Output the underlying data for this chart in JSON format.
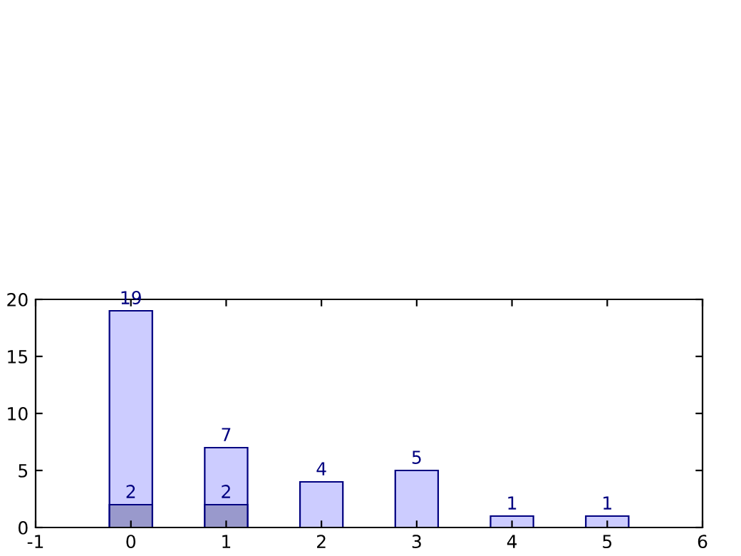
{
  "chart_data": {
    "type": "bar",
    "series": [
      {
        "color": "#ccccff",
        "x": [
          0,
          1,
          2,
          3,
          4,
          5
        ],
        "values": [
          19,
          7,
          4,
          5,
          1,
          1
        ]
      },
      {
        "color": "#9999cc",
        "x": [
          0,
          1
        ],
        "values": [
          2,
          2
        ]
      }
    ],
    "data_labels": true,
    "xlim": [
      -1,
      6
    ],
    "xticks": [
      -1,
      0,
      1,
      2,
      3,
      4,
      5,
      6
    ],
    "ylim": [
      0,
      20
    ],
    "yticks": [
      0,
      5,
      10,
      15,
      20
    ],
    "grid": false,
    "legend": false
  }
}
